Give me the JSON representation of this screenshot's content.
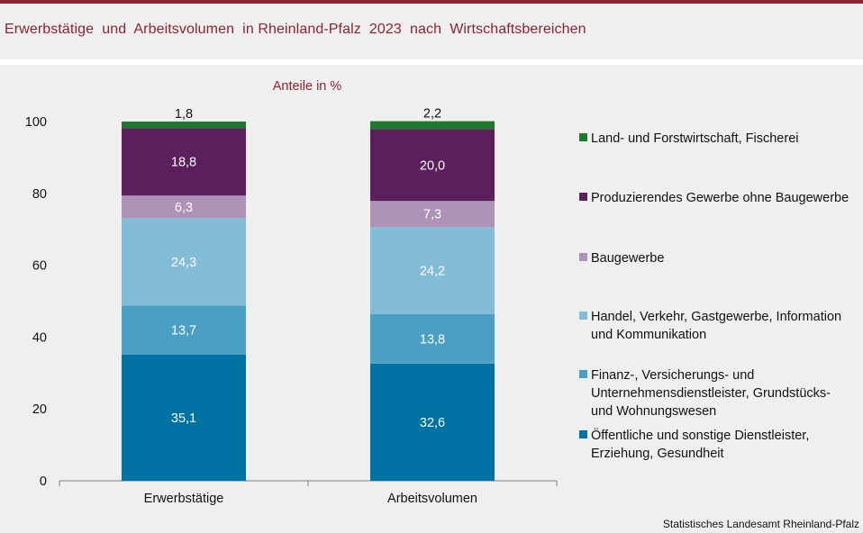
{
  "title": "Erwerbstätige  und  Arbeitsvolumen  in Rheinland-Pfalz  2023  nach  Wirtschaftsbereichen",
  "source": "Statistisches Landesamt Rheinland-Pfalz",
  "chart_data": {
    "type": "bar",
    "stacked": true,
    "subtitle": "Anteile in %",
    "unit": "%",
    "categories": [
      "Erwerbstätige",
      "Arbeitsvolumen"
    ],
    "ylim": [
      0,
      100
    ],
    "yticks": [
      "0",
      "20",
      "40",
      "60",
      "80",
      "100"
    ],
    "grid": false,
    "legend_position": "right",
    "series": [
      {
        "name": "Öffentliche und sonstige Dienstleister, Erziehung, Gesundheit",
        "values": [
          35.1,
          32.6
        ],
        "labels": [
          "35,1",
          "32,6"
        ],
        "color": "#0072a3",
        "label_color": "#ffffff"
      },
      {
        "name": "Finanz-, Versicherungs- und Unternehmensdienstleister, Grundstücks- und Wohnungswesen",
        "values": [
          13.7,
          13.8
        ],
        "labels": [
          "13,7",
          "13,8"
        ],
        "color": "#4a9fc4",
        "label_color": "#ffffff"
      },
      {
        "name": "Handel, Verkehr, Gastgewerbe, Information und Kommunikation",
        "values": [
          24.3,
          24.2
        ],
        "labels": [
          "24,3",
          "24,2"
        ],
        "color": "#82bcd7",
        "label_color": "#ffffff"
      },
      {
        "name": "Baugewerbe",
        "values": [
          6.3,
          7.3
        ],
        "labels": [
          "6,3",
          "7,3"
        ],
        "color": "#ae93b6",
        "label_color": "#ffffff"
      },
      {
        "name": "Produzierendes Gewerbe ohne Baugewerbe",
        "values": [
          18.8,
          20.0
        ],
        "labels": [
          "18,8",
          "20,0"
        ],
        "color": "#5b1f5e",
        "label_color": "#ffffff"
      },
      {
        "name": "Land- und Forstwirtschaft, Fischerei",
        "values": [
          1.8,
          2.2
        ],
        "labels": [
          "1,8",
          "2,2"
        ],
        "color": "#1d7a2e",
        "label_color": "#111111",
        "label_outside": true
      }
    ]
  }
}
